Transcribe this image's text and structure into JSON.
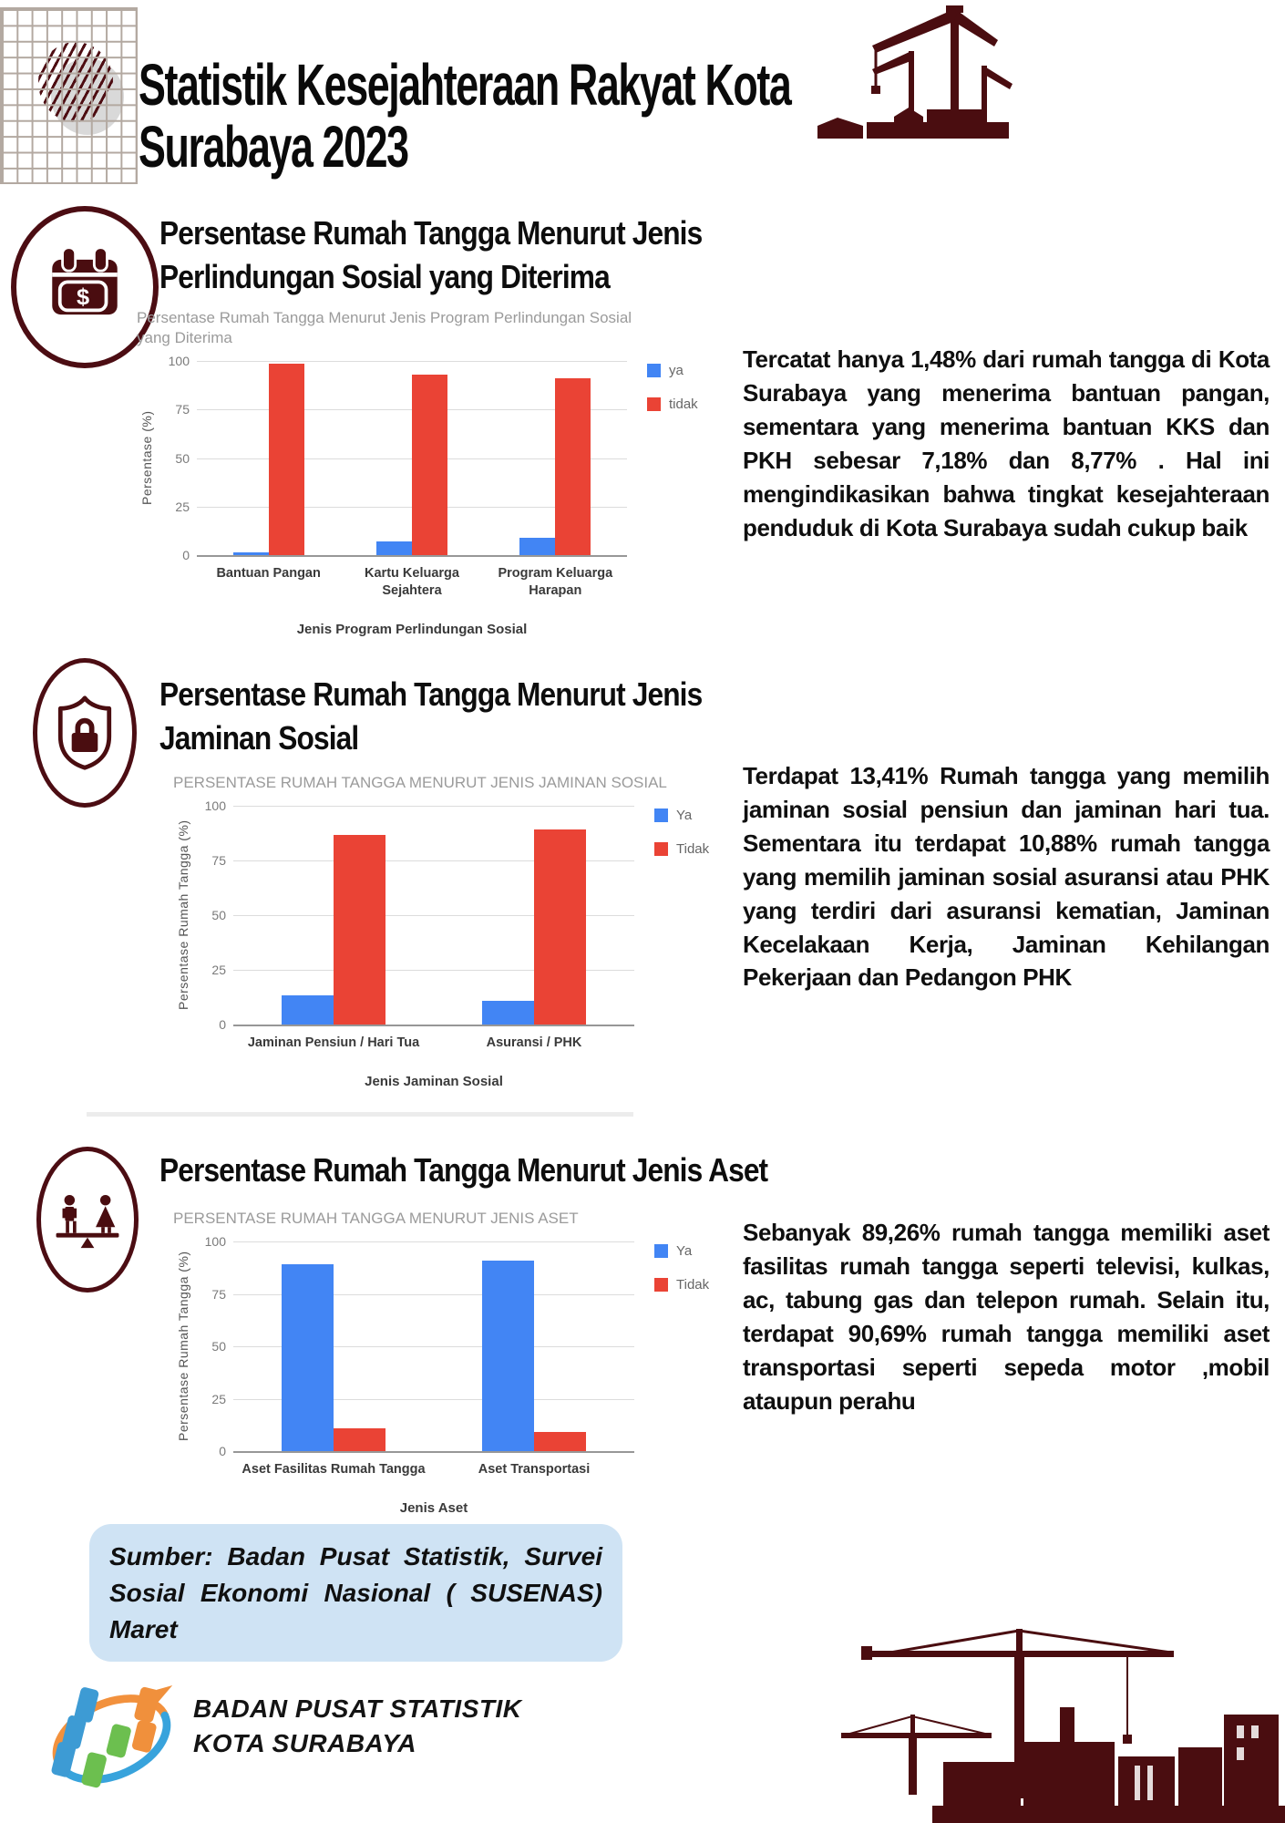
{
  "header": {
    "title": "Statistik Kesejahteraan Rakyat Kota Surabaya 2023"
  },
  "sections": [
    {
      "icon": "calendar-dollar-icon",
      "heading": "Persentase Rumah Tangga Menurut Jenis Perlindungan Sosial yang Diterima",
      "paragraph": "Tercatat hanya 1,48% dari rumah tangga di Kota Surabaya yang menerima bantuan pangan, sementara yang menerima bantuan KKS dan PKH sebesar 7,18% dan 8,77% . Hal ini mengindikasikan bahwa tingkat kesejahteraan penduduk di Kota Surabaya sudah cukup baik"
    },
    {
      "icon": "shield-lock-icon",
      "heading": "Persentase Rumah Tangga Menurut Jenis Jaminan Sosial",
      "paragraph": "Terdapat 13,41% Rumah tangga yang memilih jaminan sosial pensiun dan jaminan hari tua. Sementara itu terdapat 10,88% rumah tangga yang memilih jaminan sosial asuransi atau PHK yang terdiri dari asuransi kematian, Jaminan Kecelakaan Kerja, Jaminan Kehilangan Pekerjaan dan Pedangon PHK"
    },
    {
      "icon": "gender-balance-icon",
      "heading": "Persentase Rumah Tangga Menurut Jenis Aset",
      "paragraph": "Sebanyak 89,26% rumah tangga memiliki aset fasilitas rumah tangga seperti televisi, kulkas, ac, tabung gas dan telepon rumah. Selain itu, terdapat 90,69% rumah tangga memiliki aset transportasi seperti sepeda motor ,mobil ataupun perahu"
    }
  ],
  "chart_data": [
    {
      "type": "bar",
      "title": "Persentase Rumah Tangga Menurut Jenis Program Perlindungan Sosial yang Diterima",
      "categories": [
        "Bantuan Pangan",
        "Kartu Keluarga Sejahtera",
        "Program Keluarga Harapan"
      ],
      "series": [
        {
          "name": "ya",
          "color": "#4285f4",
          "values": [
            1.48,
            7.18,
            8.77
          ]
        },
        {
          "name": "tidak",
          "color": "#ea4335",
          "values": [
            98.52,
            92.82,
            91.23
          ]
        }
      ],
      "xlabel": "Jenis Program Perlindungan Sosial",
      "ylabel": "Persentase (%)",
      "ylim": [
        0,
        100
      ],
      "yticks": [
        0,
        25,
        50,
        75,
        100
      ],
      "grid": true,
      "legend_position": "right"
    },
    {
      "type": "bar",
      "title": "PERSENTASE RUMAH TANGGA MENURUT JENIS JAMINAN SOSIAL",
      "categories": [
        "Jaminan Pensiun / Hari Tua",
        "Asuransi / PHK"
      ],
      "series": [
        {
          "name": "Ya",
          "color": "#4285f4",
          "values": [
            13.41,
            10.88
          ]
        },
        {
          "name": "Tidak",
          "color": "#ea4335",
          "values": [
            86.59,
            89.12
          ]
        }
      ],
      "xlabel": "Jenis Jaminan Sosial",
      "ylabel": "Persentase Rumah Tangga (%)",
      "ylim": [
        0,
        100
      ],
      "yticks": [
        0,
        25,
        50,
        75,
        100
      ],
      "grid": true,
      "legend_position": "right"
    },
    {
      "type": "bar",
      "title": "PERSENTASE RUMAH TANGGA MENURUT JENIS ASET",
      "categories": [
        "Aset Fasilitas Rumah Tangga",
        "Aset Transportasi"
      ],
      "series": [
        {
          "name": "Ya",
          "color": "#4285f4",
          "values": [
            89.26,
            90.69
          ]
        },
        {
          "name": "Tidak",
          "color": "#ea4335",
          "values": [
            10.74,
            9.31
          ]
        }
      ],
      "xlabel": "Jenis Aset",
      "ylabel": "Persentase Rumah Tangga (%)",
      "ylim": [
        0,
        100
      ],
      "yticks": [
        0,
        25,
        50,
        75,
        100
      ],
      "grid": true,
      "legend_position": "right"
    }
  ],
  "source_box": {
    "text": "Sumber: Badan Pusat Statistik, Survei Sosial Ekonomi Nasional ( SUSENAS) Maret"
  },
  "footer": {
    "org_line1": "BADAN PUSAT STATISTIK",
    "org_line2": "KOTA SURABAYA"
  }
}
